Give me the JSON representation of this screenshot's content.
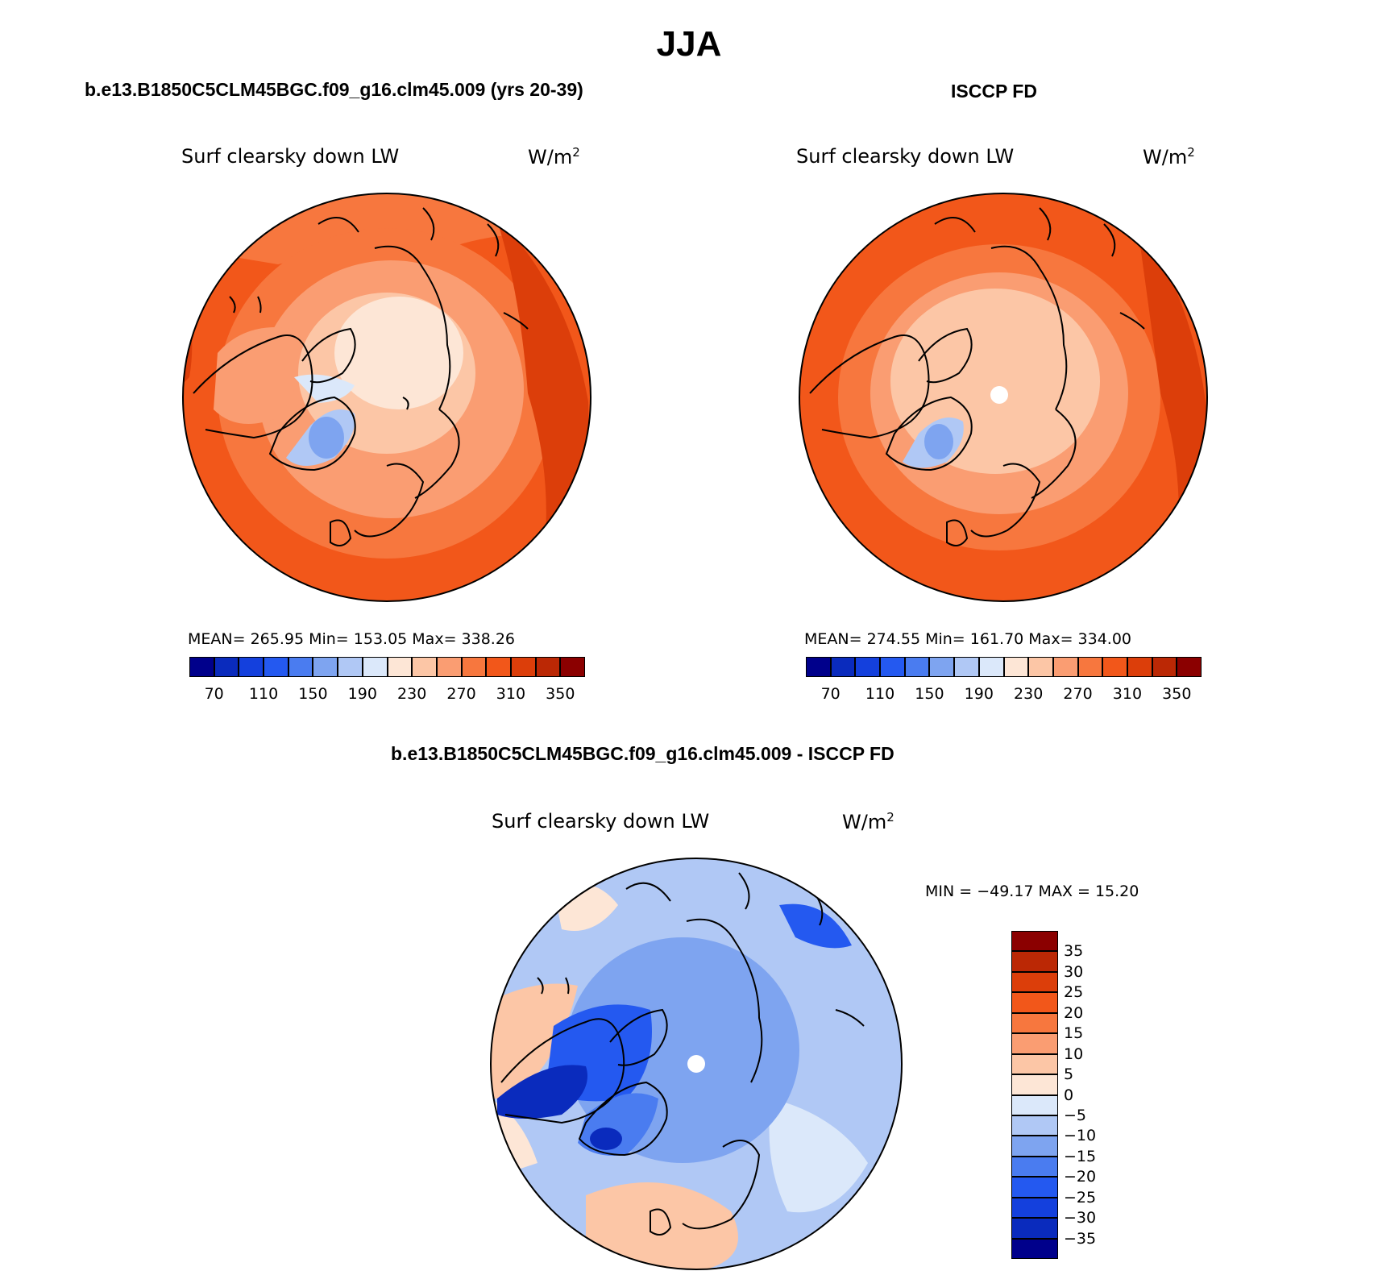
{
  "figure": {
    "title": "JJA"
  },
  "panels": [
    {
      "id": "model",
      "heading": "b.e13.B1850C5CLM45BGC.f09_g16.clm45.009 (yrs 20-39)",
      "variable": "Surf clearsky down LW",
      "units_base": "W/m",
      "units_exp": "2",
      "stats": "MEAN= 265.95   Min= 153.05   Max= 338.26"
    },
    {
      "id": "obs",
      "heading": "ISCCP FD",
      "variable": "Surf clearsky down LW",
      "units_base": "W/m",
      "units_exp": "2",
      "stats": "MEAN= 274.55   Min= 161.70   Max= 334.00"
    },
    {
      "id": "diff",
      "heading": "b.e13.B1850C5CLM45BGC.f09_g16.clm45.009 - ISCCP FD",
      "variable": "Surf clearsky down LW",
      "units_base": "W/m",
      "units_exp": "2",
      "stats": "MIN = −49.17 MAX =   15.20"
    }
  ],
  "colorbar_abs": {
    "colors": [
      "#00008b",
      "#0a2bbd",
      "#1440dd",
      "#2459f0",
      "#4a7cf0",
      "#7ea4f0",
      "#b0c8f5",
      "#dbe8fa",
      "#fde6d6",
      "#fcc6a6",
      "#fa9d72",
      "#f7773e",
      "#f2571a",
      "#dc3e0a",
      "#bb2805",
      "#8b0000"
    ],
    "labels": [
      "70",
      "110",
      "150",
      "190",
      "230",
      "270",
      "310",
      "350"
    ]
  },
  "colorbar_diff": {
    "colors": [
      "#8b0000",
      "#bb2805",
      "#dc3e0a",
      "#f2571a",
      "#f7773e",
      "#fa9d72",
      "#fcc6a6",
      "#fde6d6",
      "#dbe8fa",
      "#b0c8f5",
      "#7ea4f0",
      "#4a7cf0",
      "#2459f0",
      "#1440dd",
      "#0a2bbd",
      "#00008b"
    ],
    "labels": [
      "35",
      "30",
      "25",
      "20",
      "15",
      "10",
      "5",
      "0",
      "−5",
      "−10",
      "−15",
      "−20",
      "−25",
      "−30",
      "−35"
    ]
  },
  "map_colors": {
    "abs_outer": "#f2571a",
    "abs_mid": "#f7773e",
    "abs_inner": "#fa9d72",
    "abs_pole": "#fde6d6",
    "abs_ice": "#7ea4f0",
    "diff_base": "#b0c8f5",
    "diff_strong": "#2459f0",
    "diff_warm": "#fcc6a6"
  }
}
